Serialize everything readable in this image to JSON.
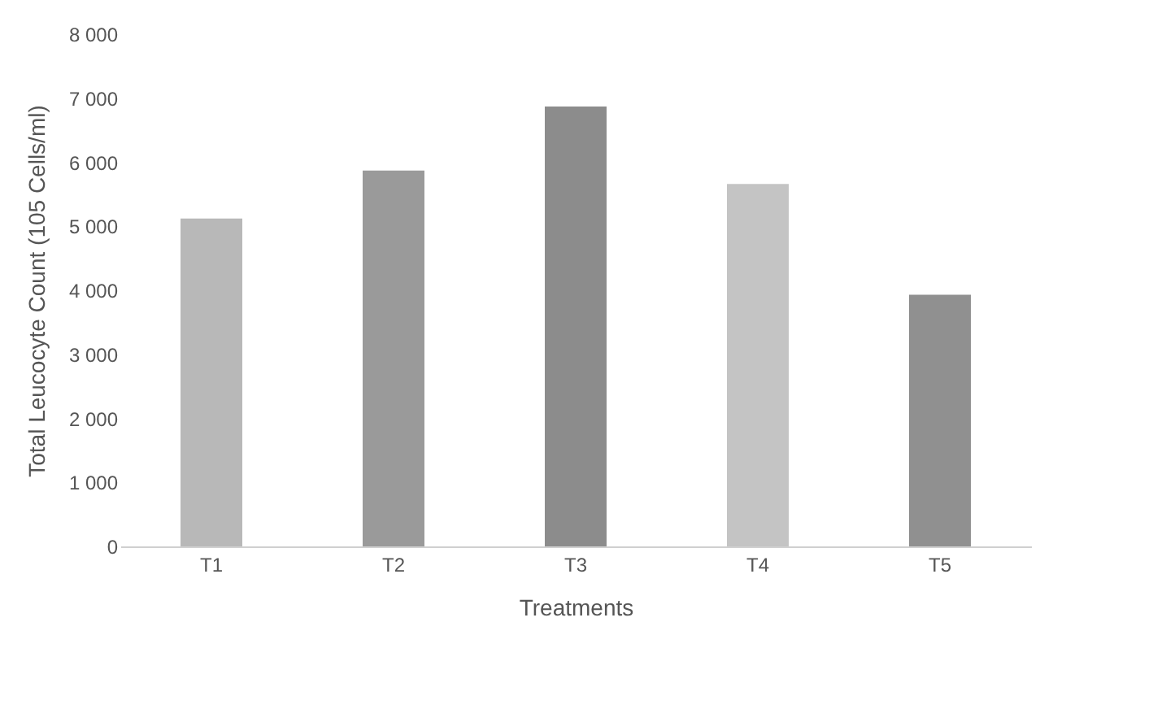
{
  "chart_data": {
    "type": "bar",
    "xlabel": "Treatments",
    "ylabel": "Total Leucocyte Count (105 Cells/ml)",
    "categories": [
      "T1",
      "T2",
      "T3",
      "T4",
      "T5"
    ],
    "values": [
      5120,
      5870,
      6870,
      5660,
      3930
    ],
    "colors": [
      "#b8b8b8",
      "#9a9a9a",
      "#8c8c8c",
      "#c4c4c4",
      "#909090"
    ],
    "ylim": [
      0,
      8000
    ],
    "yticks": [
      {
        "value": 0,
        "label": "0"
      },
      {
        "value": 1000,
        "label": "1 000"
      },
      {
        "value": 2000,
        "label": "2 000"
      },
      {
        "value": 3000,
        "label": "3 000"
      },
      {
        "value": 4000,
        "label": "4 000"
      },
      {
        "value": 5000,
        "label": "5 000"
      },
      {
        "value": 6000,
        "label": "6 000"
      },
      {
        "value": 7000,
        "label": "7 000"
      },
      {
        "value": 8000,
        "label": "8 000"
      }
    ],
    "grid": false
  }
}
